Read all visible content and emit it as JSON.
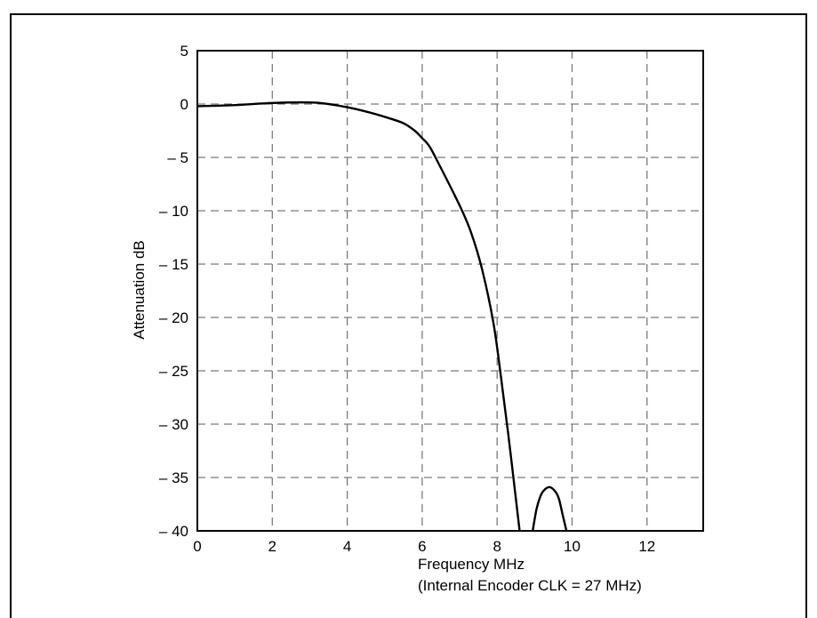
{
  "chart_data": {
    "type": "line",
    "title": "",
    "xlabel": "Frequency MHz",
    "xlabel_sub": "(Internal Encoder CLK = 27 MHz)",
    "ylabel": "Attenuation dB",
    "xlim": [
      0,
      13.5
    ],
    "ylim": [
      -40,
      5
    ],
    "x_ticks": [
      0,
      2,
      4,
      6,
      8,
      10,
      12
    ],
    "y_ticks": [
      5,
      0,
      -5,
      -10,
      -15,
      -20,
      -25,
      -30,
      -35,
      -40
    ],
    "x_tick_labels": [
      "0",
      "2",
      "4",
      "6",
      "8",
      "10",
      "12"
    ],
    "y_tick_labels": [
      "5",
      "0",
      "– 5",
      "– 10",
      "– 15",
      "– 20",
      "– 25",
      "– 30",
      "– 35",
      "– 40"
    ],
    "grid": true,
    "grid_style": "dashed",
    "line_color": "#000000",
    "series": [
      {
        "segments": [
          {
            "x": [
              0,
              1,
              2,
              3,
              3.5,
              4,
              4.5,
              5,
              5.5,
              5.8,
              6.0,
              6.2,
              6.5,
              7.0,
              7.3,
              7.6,
              7.9,
              8.1,
              8.3,
              8.5,
              8.6
            ],
            "y": [
              -0.2,
              -0.1,
              0.1,
              0.15,
              0.0,
              -0.3,
              -0.7,
              -1.2,
              -1.8,
              -2.5,
              -3.2,
              -4.0,
              -6.0,
              -9.5,
              -12.0,
              -15.5,
              -20.5,
              -25.5,
              -31.0,
              -37.0,
              -40.0
            ]
          },
          {
            "x": [
              8.95,
              9.05,
              9.15,
              9.25,
              9.4,
              9.55,
              9.65,
              9.75,
              9.85
            ],
            "y": [
              -40.0,
              -38.0,
              -36.8,
              -36.2,
              -35.9,
              -36.3,
              -37.0,
              -38.5,
              -40.0
            ]
          }
        ]
      }
    ]
  }
}
